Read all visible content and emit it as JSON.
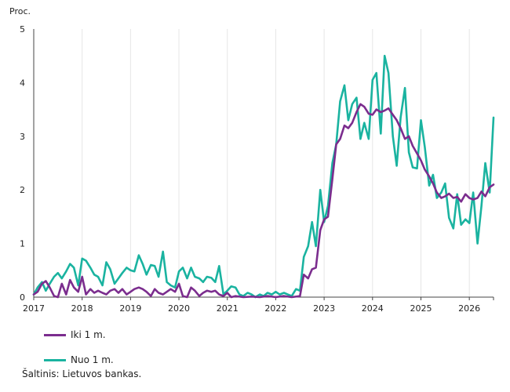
{
  "chart_data": {
    "type": "line",
    "ylabel": "Proc.",
    "ylim": [
      0,
      5
    ],
    "yticks": [
      0,
      1,
      2,
      3,
      4,
      5
    ],
    "xlim": [
      2017.0,
      2026.5
    ],
    "xticks": [
      2017,
      2018,
      2019,
      2020,
      2021,
      2022,
      2023,
      2024,
      2025,
      2026
    ],
    "grid": "vertical",
    "legend": "bottom-left",
    "series": [
      {
        "name": "Iki 1 m.",
        "color": "#7b2d8e",
        "points": [
          [
            2017.0,
            0.05
          ],
          [
            2017.08,
            0.1
          ],
          [
            2017.17,
            0.25
          ],
          [
            2017.25,
            0.3
          ],
          [
            2017.33,
            0.18
          ],
          [
            2017.42,
            0.02
          ],
          [
            2017.5,
            0.0
          ],
          [
            2017.58,
            0.25
          ],
          [
            2017.67,
            0.05
          ],
          [
            2017.75,
            0.32
          ],
          [
            2017.83,
            0.18
          ],
          [
            2017.92,
            0.1
          ],
          [
            2018.0,
            0.38
          ],
          [
            2018.08,
            0.05
          ],
          [
            2018.17,
            0.15
          ],
          [
            2018.25,
            0.08
          ],
          [
            2018.33,
            0.12
          ],
          [
            2018.42,
            0.08
          ],
          [
            2018.5,
            0.05
          ],
          [
            2018.58,
            0.12
          ],
          [
            2018.67,
            0.15
          ],
          [
            2018.75,
            0.08
          ],
          [
            2018.83,
            0.15
          ],
          [
            2018.92,
            0.05
          ],
          [
            2019.0,
            0.1
          ],
          [
            2019.08,
            0.15
          ],
          [
            2019.17,
            0.18
          ],
          [
            2019.25,
            0.15
          ],
          [
            2019.33,
            0.1
          ],
          [
            2019.42,
            0.02
          ],
          [
            2019.5,
            0.15
          ],
          [
            2019.58,
            0.08
          ],
          [
            2019.67,
            0.05
          ],
          [
            2019.75,
            0.1
          ],
          [
            2019.83,
            0.15
          ],
          [
            2019.92,
            0.1
          ],
          [
            2020.0,
            0.25
          ],
          [
            2020.08,
            0.02
          ],
          [
            2020.17,
            0.0
          ],
          [
            2020.25,
            0.18
          ],
          [
            2020.33,
            0.12
          ],
          [
            2020.42,
            0.02
          ],
          [
            2020.5,
            0.08
          ],
          [
            2020.58,
            0.12
          ],
          [
            2020.67,
            0.1
          ],
          [
            2020.75,
            0.12
          ],
          [
            2020.83,
            0.05
          ],
          [
            2020.92,
            0.02
          ],
          [
            2021.0,
            0.08
          ],
          [
            2021.08,
            0.0
          ],
          [
            2021.17,
            0.02
          ],
          [
            2021.33,
            0.0
          ],
          [
            2021.5,
            0.01
          ],
          [
            2021.67,
            0.0
          ],
          [
            2021.83,
            0.02
          ],
          [
            2022.0,
            0.0
          ],
          [
            2022.17,
            0.02
          ],
          [
            2022.33,
            0.0
          ],
          [
            2022.5,
            0.02
          ],
          [
            2022.58,
            0.42
          ],
          [
            2022.67,
            0.35
          ],
          [
            2022.75,
            0.52
          ],
          [
            2022.83,
            0.55
          ],
          [
            2022.92,
            1.25
          ],
          [
            2023.0,
            1.45
          ],
          [
            2023.08,
            1.5
          ],
          [
            2023.17,
            2.2
          ],
          [
            2023.25,
            2.85
          ],
          [
            2023.33,
            2.95
          ],
          [
            2023.42,
            3.2
          ],
          [
            2023.5,
            3.15
          ],
          [
            2023.58,
            3.25
          ],
          [
            2023.67,
            3.45
          ],
          [
            2023.75,
            3.6
          ],
          [
            2023.83,
            3.55
          ],
          [
            2023.92,
            3.42
          ],
          [
            2024.0,
            3.4
          ],
          [
            2024.08,
            3.5
          ],
          [
            2024.17,
            3.45
          ],
          [
            2024.25,
            3.48
          ],
          [
            2024.33,
            3.52
          ],
          [
            2024.42,
            3.4
          ],
          [
            2024.5,
            3.3
          ],
          [
            2024.58,
            3.15
          ],
          [
            2024.67,
            2.95
          ],
          [
            2024.75,
            3.0
          ],
          [
            2024.83,
            2.82
          ],
          [
            2024.92,
            2.68
          ],
          [
            2025.0,
            2.55
          ],
          [
            2025.08,
            2.38
          ],
          [
            2025.17,
            2.25
          ],
          [
            2025.25,
            2.12
          ],
          [
            2025.33,
            1.95
          ],
          [
            2025.42,
            1.85
          ],
          [
            2025.5,
            1.88
          ],
          [
            2025.58,
            1.93
          ],
          [
            2025.67,
            1.85
          ],
          [
            2025.75,
            1.87
          ],
          [
            2025.83,
            1.78
          ],
          [
            2025.92,
            1.92
          ],
          [
            2026.0,
            1.85
          ],
          [
            2026.08,
            1.82
          ],
          [
            2026.17,
            1.85
          ],
          [
            2026.25,
            1.97
          ],
          [
            2026.33,
            1.88
          ],
          [
            2026.42,
            2.05
          ],
          [
            2026.5,
            2.1
          ]
        ]
      },
      {
        "name": "Nuo 1 m.",
        "color": "#1ab3a0",
        "points": [
          [
            2017.0,
            0.05
          ],
          [
            2017.08,
            0.18
          ],
          [
            2017.17,
            0.28
          ],
          [
            2017.25,
            0.12
          ],
          [
            2017.33,
            0.25
          ],
          [
            2017.42,
            0.38
          ],
          [
            2017.5,
            0.45
          ],
          [
            2017.58,
            0.35
          ],
          [
            2017.67,
            0.48
          ],
          [
            2017.75,
            0.62
          ],
          [
            2017.83,
            0.55
          ],
          [
            2017.92,
            0.22
          ],
          [
            2018.0,
            0.72
          ],
          [
            2018.08,
            0.68
          ],
          [
            2018.17,
            0.55
          ],
          [
            2018.25,
            0.42
          ],
          [
            2018.33,
            0.38
          ],
          [
            2018.42,
            0.22
          ],
          [
            2018.5,
            0.65
          ],
          [
            2018.58,
            0.52
          ],
          [
            2018.67,
            0.25
          ],
          [
            2018.75,
            0.35
          ],
          [
            2018.83,
            0.45
          ],
          [
            2018.92,
            0.55
          ],
          [
            2019.0,
            0.5
          ],
          [
            2019.08,
            0.48
          ],
          [
            2019.17,
            0.78
          ],
          [
            2019.25,
            0.62
          ],
          [
            2019.33,
            0.42
          ],
          [
            2019.42,
            0.6
          ],
          [
            2019.5,
            0.58
          ],
          [
            2019.58,
            0.38
          ],
          [
            2019.67,
            0.85
          ],
          [
            2019.75,
            0.28
          ],
          [
            2019.83,
            0.22
          ],
          [
            2019.92,
            0.18
          ],
          [
            2020.0,
            0.48
          ],
          [
            2020.08,
            0.55
          ],
          [
            2020.17,
            0.35
          ],
          [
            2020.25,
            0.55
          ],
          [
            2020.33,
            0.38
          ],
          [
            2020.42,
            0.35
          ],
          [
            2020.5,
            0.28
          ],
          [
            2020.58,
            0.38
          ],
          [
            2020.67,
            0.36
          ],
          [
            2020.75,
            0.28
          ],
          [
            2020.83,
            0.58
          ],
          [
            2020.92,
            0.05
          ],
          [
            2021.0,
            0.12
          ],
          [
            2021.08,
            0.2
          ],
          [
            2021.17,
            0.18
          ],
          [
            2021.25,
            0.05
          ],
          [
            2021.33,
            0.02
          ],
          [
            2021.42,
            0.08
          ],
          [
            2021.5,
            0.05
          ],
          [
            2021.58,
            0.0
          ],
          [
            2021.67,
            0.05
          ],
          [
            2021.75,
            0.02
          ],
          [
            2021.83,
            0.08
          ],
          [
            2021.92,
            0.05
          ],
          [
            2022.0,
            0.1
          ],
          [
            2022.08,
            0.05
          ],
          [
            2022.17,
            0.08
          ],
          [
            2022.25,
            0.05
          ],
          [
            2022.33,
            0.02
          ],
          [
            2022.42,
            0.15
          ],
          [
            2022.5,
            0.12
          ],
          [
            2022.58,
            0.75
          ],
          [
            2022.67,
            0.95
          ],
          [
            2022.75,
            1.4
          ],
          [
            2022.83,
            0.95
          ],
          [
            2022.92,
            2.0
          ],
          [
            2023.0,
            1.4
          ],
          [
            2023.08,
            1.7
          ],
          [
            2023.17,
            2.5
          ],
          [
            2023.25,
            2.85
          ],
          [
            2023.33,
            3.65
          ],
          [
            2023.42,
            3.95
          ],
          [
            2023.5,
            3.3
          ],
          [
            2023.58,
            3.6
          ],
          [
            2023.67,
            3.72
          ],
          [
            2023.75,
            2.95
          ],
          [
            2023.83,
            3.25
          ],
          [
            2023.92,
            2.95
          ],
          [
            2024.0,
            4.05
          ],
          [
            2024.08,
            4.18
          ],
          [
            2024.17,
            3.05
          ],
          [
            2024.25,
            4.5
          ],
          [
            2024.33,
            4.18
          ],
          [
            2024.42,
            3.0
          ],
          [
            2024.5,
            2.45
          ],
          [
            2024.58,
            3.35
          ],
          [
            2024.67,
            3.9
          ],
          [
            2024.75,
            2.7
          ],
          [
            2024.83,
            2.42
          ],
          [
            2024.92,
            2.4
          ],
          [
            2025.0,
            3.3
          ],
          [
            2025.08,
            2.8
          ],
          [
            2025.17,
            2.08
          ],
          [
            2025.25,
            2.28
          ],
          [
            2025.33,
            1.85
          ],
          [
            2025.42,
            1.95
          ],
          [
            2025.5,
            2.12
          ],
          [
            2025.58,
            1.48
          ],
          [
            2025.67,
            1.28
          ],
          [
            2025.75,
            1.92
          ],
          [
            2025.83,
            1.35
          ],
          [
            2025.92,
            1.45
          ],
          [
            2026.0,
            1.38
          ],
          [
            2026.08,
            1.95
          ],
          [
            2026.17,
            1.0
          ],
          [
            2026.25,
            1.7
          ],
          [
            2026.33,
            2.5
          ],
          [
            2026.42,
            1.95
          ],
          [
            2026.5,
            3.35
          ]
        ]
      }
    ]
  },
  "source": "Šaltinis: Lietuvos bankas."
}
